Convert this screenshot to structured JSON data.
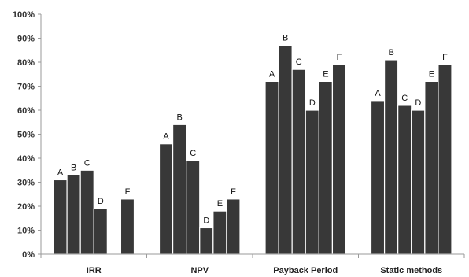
{
  "chart_data": {
    "type": "bar",
    "categories": [
      "IRR",
      "NPV",
      "Payback Period",
      "Static methods"
    ],
    "series": [
      {
        "name": "A",
        "values": [
          31,
          46,
          72,
          64
        ]
      },
      {
        "name": "B",
        "values": [
          33,
          54,
          87,
          81
        ]
      },
      {
        "name": "C",
        "values": [
          35,
          39,
          77,
          62
        ]
      },
      {
        "name": "D",
        "values": [
          19,
          11,
          60,
          60
        ]
      },
      {
        "name": "E",
        "values": [
          null,
          18,
          72,
          72
        ]
      },
      {
        "name": "F",
        "values": [
          23,
          23,
          79,
          79
        ]
      }
    ],
    "y_ticks": [
      "0%",
      "10%",
      "20%",
      "30%",
      "40%",
      "50%",
      "60%",
      "70%",
      "80%",
      "90%",
      "100%"
    ],
    "ylim": [
      0,
      100
    ],
    "title": "",
    "xlabel": "",
    "ylabel": "",
    "legend": "none",
    "grid": false,
    "bar_color": "#383838"
  }
}
